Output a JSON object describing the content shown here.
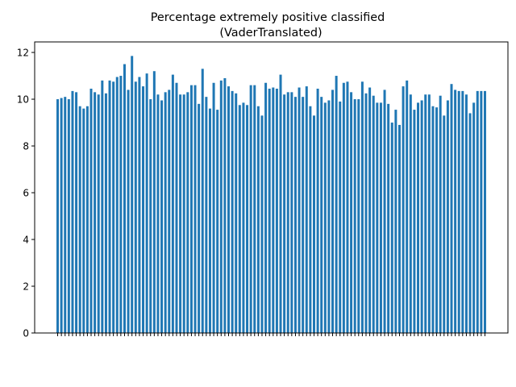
{
  "chart_data": {
    "type": "bar",
    "title": "Percentage extremely positive classified",
    "subtitle": "(VaderTranslated)",
    "color": "#1f77b4",
    "categories": [
      null,
      null,
      null,
      null,
      null,
      null,
      null,
      null,
      null,
      null,
      null,
      null,
      null,
      null,
      null,
      null,
      null,
      null,
      null,
      null,
      null,
      null,
      null,
      null,
      null,
      null,
      null,
      null,
      null,
      null,
      null,
      null,
      null,
      null,
      null,
      null,
      null,
      null,
      null,
      null,
      null,
      null,
      null,
      null,
      null,
      null,
      null,
      null,
      null,
      null,
      null,
      null,
      null,
      null,
      null,
      null,
      null,
      null,
      null,
      null,
      null,
      null,
      null,
      null,
      null,
      null,
      null,
      null,
      null,
      null,
      null,
      null,
      null,
      null,
      null,
      null,
      null,
      null,
      null,
      null,
      null,
      null,
      null,
      null,
      null,
      null,
      null,
      null,
      null,
      null,
      null,
      null,
      null,
      null,
      null,
      null,
      null,
      null,
      null,
      null,
      null,
      null,
      null,
      null,
      null,
      null,
      null,
      null,
      null,
      null,
      null,
      null,
      null,
      null,
      null,
      null
    ],
    "values": [
      10.0,
      10.05,
      10.1,
      10.0,
      10.35,
      10.3,
      9.7,
      9.6,
      9.7,
      10.45,
      10.3,
      10.2,
      10.8,
      10.25,
      10.8,
      10.75,
      10.95,
      11.0,
      11.5,
      10.4,
      11.85,
      10.75,
      10.95,
      10.55,
      11.1,
      10.0,
      11.2,
      10.2,
      9.95,
      10.3,
      10.4,
      11.05,
      10.7,
      10.2,
      10.2,
      10.3,
      10.6,
      10.6,
      9.8,
      11.3,
      10.1,
      9.6,
      10.7,
      9.55,
      10.8,
      10.9,
      10.55,
      10.35,
      10.25,
      9.75,
      9.85,
      9.75,
      10.6,
      10.6,
      9.7,
      9.3,
      10.7,
      10.45,
      10.5,
      10.45,
      11.05,
      10.2,
      10.3,
      10.3,
      10.1,
      10.5,
      10.1,
      10.55,
      9.7,
      9.3,
      10.45,
      10.1,
      9.85,
      9.95,
      10.4,
      11.0,
      9.9,
      10.7,
      10.75,
      10.3,
      10.0,
      10.0,
      10.75,
      10.25,
      10.5,
      10.15,
      9.85,
      9.85,
      10.4,
      9.8,
      9.0,
      9.55,
      8.9,
      10.55,
      10.8,
      10.2,
      9.55,
      9.85,
      9.95,
      10.2,
      10.2,
      9.7,
      9.65,
      10.15,
      9.3,
      9.95,
      10.65,
      10.4,
      10.35,
      10.35,
      10.2,
      9.4,
      9.85,
      10.35,
      10.35,
      10.35
    ],
    "ylim": [
      0,
      12.45
    ],
    "yticks": [
      0,
      2,
      4,
      6,
      8,
      10,
      12
    ]
  }
}
